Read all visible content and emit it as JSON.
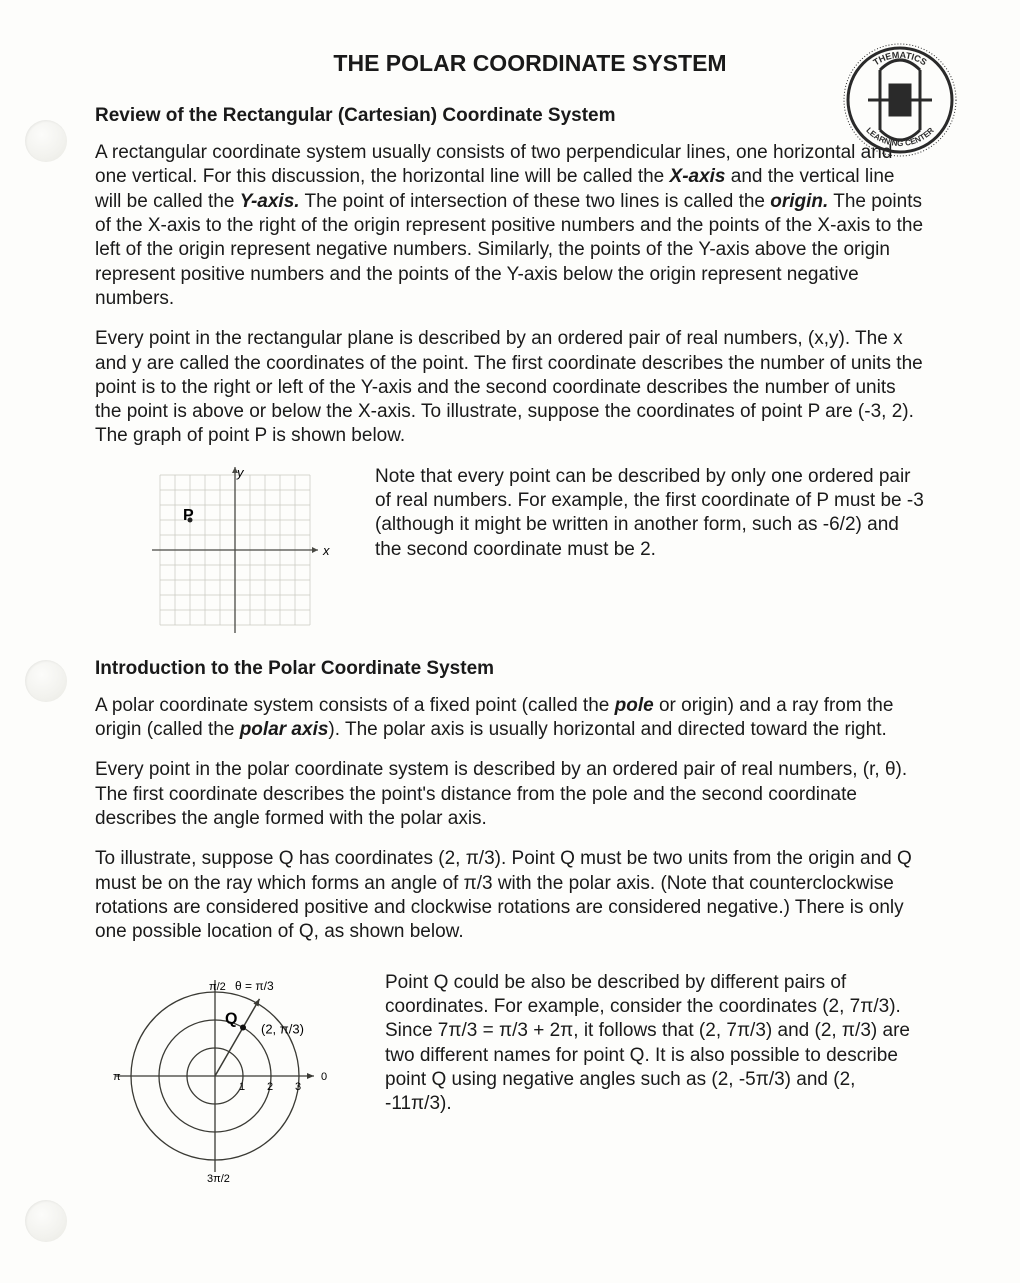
{
  "title": "THE POLAR COORDINATE SYSTEM",
  "logo": {
    "top_text": "THEMATICS",
    "bottom_text": "LEARNING CENTER",
    "stroke": "#2a2a2a"
  },
  "section1": {
    "heading": "Review of the Rectangular (Cartesian) Coordinate System",
    "p1a": "A rectangular coordinate system usually consists of two perpendicular lines, one horizontal and one vertical.  For this discussion, the horizontal line will be called the ",
    "xaxis": "X-axis",
    "p1b": " and the vertical line will be called the ",
    "yaxis": "Y-axis.",
    "p1c": "  The point of intersection of these two lines is called the ",
    "origin": "origin.",
    "p1d": "  The points of the X-axis to the right of the origin represent positive numbers and the points of the X-axis to the left of the origin represent negative numbers.  Similarly, the points of the Y-axis above the origin represent positive numbers and the points of the Y-axis below the origin represent negative numbers.",
    "p2": "Every point in the rectangular plane is described by an ordered pair of real numbers, (x,y).  The x and y are called the coordinates of the point.  The first coordinate describes the number of units the point is to the right or left of the Y-axis and the second coordinate describes  the number of units the point is above or below the X-axis.  To illustrate, suppose the coordinates of point P are (-3, 2).  The graph of point P is shown below.",
    "note": "Note that every point can be described by only one ordered pair of real numbers.  For example, the first coordinate of P must be -3 (although it might be written in another form, such as -6/2) and the second coordinate must be 2.",
    "grid": {
      "label_y": "y",
      "label_x": "x",
      "point_label": "P",
      "point_xy": [
        -3,
        2
      ],
      "range": [
        -5,
        5
      ],
      "grid_color": "#c8c8c0",
      "axis_color": "#4a4a44"
    }
  },
  "section2": {
    "heading": "Introduction to the Polar Coordinate System",
    "p1a": "A polar coordinate system consists of a fixed point (called the ",
    "pole": "pole",
    "p1b": " or origin) and a ray from the origin (called the ",
    "polaraxis": "polar axis",
    "p1c": ").  The polar axis is usually horizontal and directed toward the right.",
    "p2": "Every point in the polar coordinate system is described by an ordered pair of real numbers, (r, θ).  The first coordinate describes the point's distance from the pole and the second coordinate describes the angle formed with the polar axis.",
    "p3": "To illustrate, suppose Q has coordinates (2, π/3).  Point Q must be two units from the origin and Q must be on the ray which forms an angle of π/3 with the polar axis.  (Note that counterclockwise rotations are considered positive and clockwise rotations are considered negative.)  There is only one possible location of Q, as shown below.",
    "note": "Point Q could be also be described by different pairs of coordinates.  For example, consider the coordinates (2, 7π/3).  Since 7π/3 =  π/3 + 2π, it follows that (2, 7π/3) and (2, π/3) are two different names for point Q.  It is also possible to describe point Q using negative angles such as (2, -5π/3) and (2, -11π/3).",
    "polar": {
      "rings": [
        1,
        2,
        3
      ],
      "point_label": "Q",
      "point_r": 2,
      "point_theta_deg": 60,
      "coord_label": "(2, π/3)",
      "theta_label": "θ = π/3",
      "pi2": "π/2",
      "threepi2": "3π/2",
      "pi": "π",
      "zero": "0",
      "ring_color": "#3a3a34",
      "axis_color": "#3a3a34"
    }
  }
}
